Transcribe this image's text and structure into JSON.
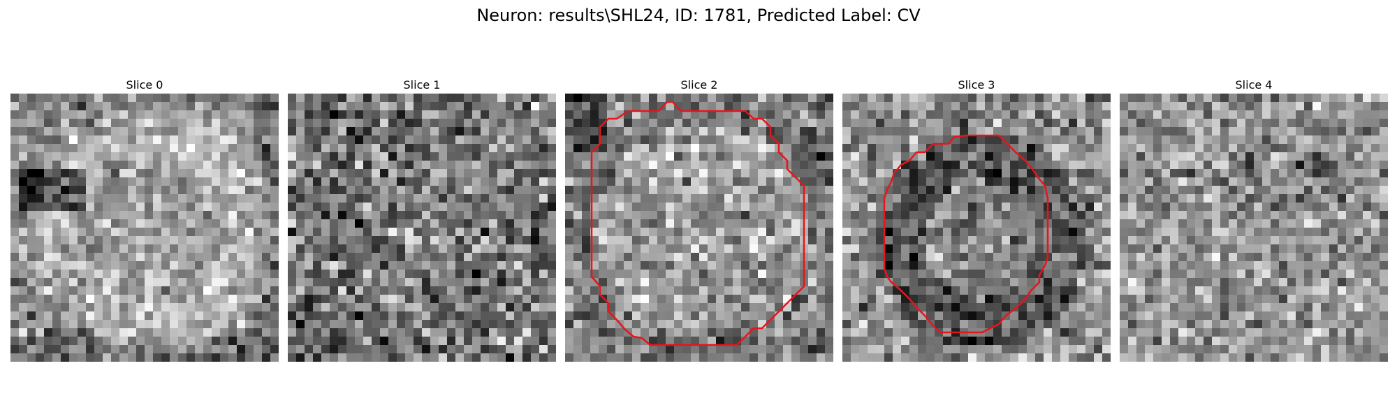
{
  "figure": {
    "title": "Neuron: results\\SHL24, ID: 1781, Predicted Label: CV"
  },
  "panels": [
    {
      "title": "Slice 0",
      "has_contour": false
    },
    {
      "title": "Slice 1",
      "has_contour": false
    },
    {
      "title": "Slice 2",
      "has_contour": true
    },
    {
      "title": "Slice 3",
      "has_contour": true
    },
    {
      "title": "Slice 4",
      "has_contour": false
    }
  ],
  "colors": {
    "contour": "#e8141b",
    "background": "#ffffff"
  },
  "colormap": "gray"
}
